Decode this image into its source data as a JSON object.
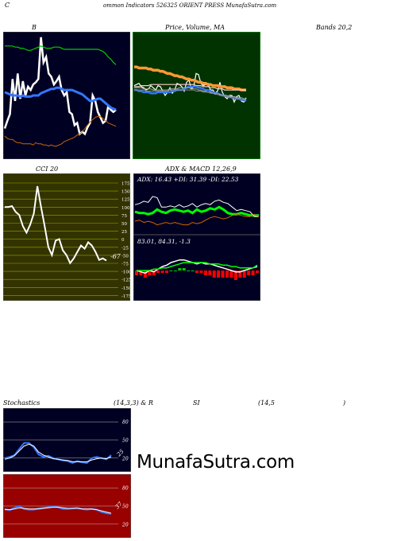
{
  "header": {
    "c_letter": "C",
    "title": "ommon  Indicators 526325 ORIENT PRESS MunafaSutra.com"
  },
  "labels": {
    "b": "B",
    "price_ma": "Price,  Volume,  MA",
    "bands": "Bands 20,2",
    "cci": "CCI 20",
    "adx_macd": "ADX  & MACD 12,26,9",
    "adx_values": "ADX: 16.43  +DI: 31.39 -DI: 22.53",
    "macd_values": "83.01,  84.31,  -1.3",
    "stoch": "Stochastics",
    "stoch_params": "(14,3,3) & R",
    "rsi": "SI",
    "rsi_params": "(14,5",
    "close_paren": ")",
    "cci_last": "-67",
    "stoch_last": "25",
    "rsi_last": "37"
  },
  "watermark": "MunafaSutra.com",
  "colors": {
    "panel_dark": "#000022",
    "ma_green_bg": "#003300",
    "cci_bg": "#333300",
    "rsi_bg": "#990000",
    "green": "#00cc00",
    "blue": "#3377ff",
    "white": "#ffffff",
    "orange": "#cc6600",
    "red": "#ff0000"
  },
  "chart_data": [
    {
      "id": "bollinger",
      "type": "line",
      "title": "B ... Bands 20,2",
      "series": [
        {
          "color": "#ffffff",
          "values": [
            25,
            32,
            38,
            70,
            50,
            75,
            52,
            68,
            55,
            63,
            60,
            65,
            67,
            70,
            108,
            85,
            90,
            75,
            72,
            65,
            68,
            72,
            60,
            55,
            58,
            40,
            38,
            28,
            30,
            20,
            22,
            20,
            26,
            30,
            55,
            50,
            40,
            35,
            30,
            32,
            45,
            42,
            40,
            42
          ]
        },
        {
          "color": "#00cc00",
          "values": [
            100,
            100,
            100,
            100,
            99,
            99,
            98,
            98,
            97,
            96,
            96,
            97,
            98,
            99,
            100,
            99,
            98,
            98,
            98,
            99,
            99,
            99,
            98,
            97,
            97,
            97,
            97,
            97,
            97,
            97,
            97,
            97,
            97,
            97,
            97,
            97,
            97,
            96,
            95,
            93,
            90,
            88,
            85,
            83
          ]
        },
        {
          "color": "#3377ff",
          "values": [
            58,
            57,
            56,
            55,
            55,
            55,
            54,
            55,
            54,
            54,
            54,
            55,
            55,
            55,
            57,
            58,
            59,
            60,
            61,
            61,
            62,
            62,
            61,
            60,
            60,
            60,
            60,
            59,
            58,
            57,
            56,
            54,
            52,
            50,
            50,
            51,
            52,
            52,
            50,
            48,
            46,
            44,
            43,
            42
          ]
        },
        {
          "color": "#cc6600",
          "values": [
            18,
            16,
            15,
            15,
            13,
            12,
            12,
            11,
            11,
            11,
            11,
            10,
            12,
            11,
            11,
            10,
            10,
            9,
            10,
            9,
            9,
            10,
            11,
            13,
            14,
            15,
            16,
            17,
            19,
            20,
            22,
            25,
            28,
            31,
            33,
            35,
            36,
            36,
            34,
            32,
            30,
            29,
            28,
            27
          ]
        }
      ]
    },
    {
      "id": "price_volume_ma",
      "type": "line",
      "title": "Price,  Volume,  MA",
      "series": [
        {
          "color": "#ffffff",
          "values": [
            64,
            65,
            66,
            63,
            62,
            60,
            61,
            64,
            62,
            60,
            64,
            63,
            59,
            55,
            58,
            62,
            57,
            60,
            66,
            65,
            63,
            59,
            67,
            69,
            61,
            63,
            75,
            74,
            66,
            64,
            65,
            66,
            60,
            60,
            57,
            59,
            67,
            58,
            54,
            52,
            55,
            55,
            49,
            54,
            55,
            50,
            49,
            53
          ]
        },
        {
          "color": "#ff9933",
          "values": [
            81,
            81,
            80,
            80,
            80,
            80,
            79,
            79,
            78,
            78,
            78,
            77,
            77,
            76,
            75,
            75,
            74,
            73,
            73,
            72,
            72,
            71,
            70,
            70,
            69,
            69,
            68,
            67,
            67,
            66,
            66,
            65,
            65,
            64,
            64,
            64,
            63,
            63,
            63,
            62,
            62,
            62,
            61,
            61,
            61,
            60,
            60,
            60
          ]
        },
        {
          "color": "#ffcccc",
          "values": [
            63,
            63,
            63,
            64,
            64,
            64,
            64,
            65,
            65,
            65,
            65,
            65,
            65,
            65,
            65,
            65,
            65,
            65,
            65,
            65,
            65,
            65,
            65,
            65,
            65,
            65,
            64,
            64,
            64,
            63,
            63,
            63,
            62,
            62,
            62,
            61,
            61,
            61,
            60,
            60,
            60,
            60,
            60,
            60,
            60,
            60,
            60,
            60
          ]
        },
        {
          "color": "#3377ff",
          "values": [
            60,
            60,
            59,
            59,
            58,
            58,
            58,
            57,
            57,
            57,
            58,
            58,
            58,
            58,
            58,
            58,
            59,
            59,
            60,
            60,
            60,
            61,
            62,
            63,
            63,
            63,
            63,
            62,
            62,
            61,
            60,
            60,
            59,
            58,
            57,
            57,
            56,
            55,
            55,
            54,
            54,
            53,
            53,
            52,
            52,
            51,
            51,
            50
          ]
        },
        {
          "color": "#aaaaaa",
          "values": [
            62,
            62,
            62,
            62,
            61,
            61,
            61,
            61,
            60,
            60,
            60,
            60,
            60,
            60,
            60,
            61,
            61,
            61,
            61,
            62,
            62,
            62,
            62,
            62,
            61,
            61,
            61,
            60,
            60,
            59,
            59,
            58,
            58,
            57,
            57,
            56,
            56,
            55,
            55,
            55,
            54,
            54,
            54,
            53,
            53,
            53,
            52,
            52
          ]
        },
        {
          "color": "#888888",
          "values": [
            60,
            60,
            60,
            60,
            60,
            59,
            59,
            59,
            59,
            59,
            59,
            59,
            59,
            59,
            59,
            60,
            60,
            60,
            60,
            60,
            60,
            60,
            60,
            60,
            60,
            60,
            59,
            59,
            59,
            58,
            58,
            58,
            57,
            57,
            56,
            56,
            55,
            55,
            54,
            54,
            53,
            53,
            52,
            52,
            52,
            51,
            51,
            51
          ]
        }
      ]
    },
    {
      "id": "cci",
      "type": "line",
      "title": "CCI 20",
      "yticks": [
        "175",
        "150",
        "125",
        "100",
        "75",
        "50",
        "25",
        "0",
        "-25",
        "-50",
        "-75",
        "-100",
        "-125",
        "-150",
        "-175"
      ],
      "series": [
        {
          "color": "#ffffff",
          "values": [
            100,
            100,
            103,
            85,
            75,
            40,
            20,
            45,
            80,
            165,
            100,
            40,
            -25,
            -50,
            -5,
            0,
            -35,
            -50,
            -75,
            -60,
            -40,
            -20,
            -30,
            -10,
            -20,
            -40,
            -65,
            -60,
            -67
          ]
        }
      ]
    },
    {
      "id": "adx",
      "type": "line",
      "title": "ADX  & MACD 12,26,9",
      "series": [
        {
          "color": "#00ff00",
          "values": [
            26,
            25,
            25,
            24,
            25,
            28,
            26,
            25,
            27,
            28,
            27,
            26,
            27,
            25,
            28,
            26,
            27,
            29,
            28,
            30,
            28,
            25,
            24,
            24,
            25,
            24,
            23,
            23,
            23
          ]
        },
        {
          "color": "#ffffff",
          "values": [
            32,
            33,
            35,
            34,
            39,
            38,
            30,
            30,
            31,
            30,
            32,
            30,
            31,
            33,
            30,
            32,
            33,
            32,
            35,
            36,
            34,
            33,
            30,
            27,
            28,
            27,
            26,
            22,
            22
          ]
        },
        {
          "color": "#cc6600",
          "values": [
            18,
            19,
            17,
            18,
            17,
            15,
            16,
            17,
            16,
            17,
            16,
            15,
            15,
            17,
            16,
            17,
            19,
            21,
            22,
            21,
            20,
            21,
            23,
            24,
            23,
            22,
            22,
            24,
            22
          ]
        }
      ]
    },
    {
      "id": "macd",
      "type": "line",
      "title": "83.01,  84.31,  -1.3",
      "series": [
        {
          "color": "#ffffff",
          "values": [
            80,
            79,
            78,
            80,
            79,
            81,
            83,
            84,
            86,
            87,
            88,
            88,
            87,
            86,
            85,
            86,
            85,
            85,
            84,
            83,
            82,
            81,
            80,
            79,
            79,
            80,
            81,
            82,
            83
          ]
        },
        {
          "color": "#00ff00",
          "values": [
            80,
            80,
            80,
            80,
            81,
            81,
            82,
            82,
            83,
            84,
            85,
            86,
            86,
            86,
            86,
            86,
            86,
            85,
            85,
            85,
            84,
            84,
            83,
            83,
            82,
            82,
            82,
            82,
            84
          ]
        },
        {
          "color": "#ff0000",
          "values": [
            -2,
            -2,
            -3,
            -2,
            -2,
            -1,
            -1,
            -1,
            0,
            0,
            1,
            1,
            0,
            0,
            -1,
            -1,
            -2,
            -2,
            -3,
            -3,
            -3,
            -3,
            -3,
            -4,
            -3,
            -3,
            -2,
            -2,
            -1
          ]
        }
      ]
    },
    {
      "id": "stochastics",
      "type": "line",
      "title": "Stochastics (14,3,3)",
      "yticks": [
        "80",
        "50",
        "20"
      ],
      "series": [
        {
          "color": "#3377ff",
          "values": [
            20,
            22,
            25,
            35,
            45,
            45,
            38,
            26,
            22,
            24,
            20,
            18,
            16,
            15,
            12,
            15,
            13,
            12,
            20,
            22,
            20,
            18,
            25
          ]
        },
        {
          "color": "#ffffff",
          "values": [
            18,
            20,
            24,
            32,
            40,
            43,
            40,
            30,
            25,
            22,
            19,
            18,
            17,
            16,
            14,
            14,
            14,
            14,
            17,
            19,
            20,
            19,
            22
          ]
        }
      ]
    },
    {
      "id": "rsi",
      "type": "line",
      "title": "RSI (14,5)",
      "yticks": [
        "80",
        "50",
        "20"
      ],
      "series": [
        {
          "color": "#3377ff",
          "values": [
            45,
            43,
            47,
            50,
            45,
            44,
            44,
            46,
            47,
            48,
            49,
            48,
            45,
            45,
            46,
            47,
            45,
            44,
            45,
            44,
            40,
            38,
            37
          ]
        },
        {
          "color": "#ffffff",
          "values": [
            44,
            44,
            45,
            47,
            46,
            45,
            45,
            45,
            46,
            47,
            48,
            48,
            47,
            46,
            46,
            46,
            45,
            45,
            45,
            44,
            42,
            40,
            38
          ]
        }
      ]
    }
  ]
}
